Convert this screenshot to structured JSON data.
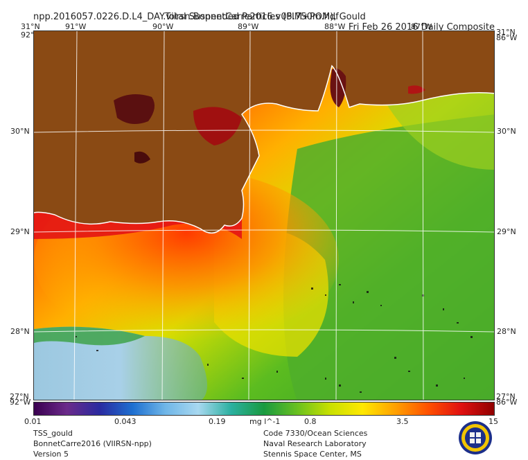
{
  "header": {
    "filename": "npp.2016057.0226.D.L4_DAY.viirsn.BonnetCarre2016.v05.750m.hdf",
    "date": "Fri Feb 26 2016 Daily Composite",
    "product": "Total Suspended Particles (PIM+POM), Gould"
  },
  "axes": {
    "top_lon": [
      "91°W",
      "90°W",
      "89°W",
      "88°W",
      "87°W"
    ],
    "lat": [
      "30°N",
      "29°N",
      "28°N"
    ],
    "corner_top_left": "31°N",
    "corner_top_left_lon": "92°W",
    "corner_top_right": "31°N",
    "corner_top_right_lon": "86°W",
    "corner_bottom_left": "27°N",
    "corner_bottom_left_lon": "92°W",
    "corner_bottom_right": "27°N",
    "corner_bottom_right_lon": "86°W"
  },
  "colorbar": {
    "ticks": [
      "0.01",
      "0.043",
      "0.19",
      "0.8",
      "3.5",
      "15"
    ],
    "unit": "mg l^-1",
    "colors": [
      "#3a0050",
      "#6b2a8a",
      "#2a2aa0",
      "#1e6fd0",
      "#6fb6e8",
      "#a8d8f0",
      "#2bb0a0",
      "#1a9a40",
      "#68c020",
      "#c8e000",
      "#ffe800",
      "#ffa000",
      "#ff5000",
      "#e01010",
      "#900000"
    ]
  },
  "footer_left": {
    "line1": "TSS_gould",
    "line2": "BonnetCarre2016 (VIIRSN-npp)",
    "line3": "Version 5"
  },
  "footer_right": {
    "line1": "Code 7330/Ocean Sciences",
    "line2": "Naval Research Laboratory",
    "line3": "Stennis Space Center, MS"
  },
  "colors": {
    "land": "#8a4a14",
    "high": "#d81818",
    "mid": "#ff8a00",
    "low": "#2ea02a",
    "clear": "#9cc8e0"
  }
}
